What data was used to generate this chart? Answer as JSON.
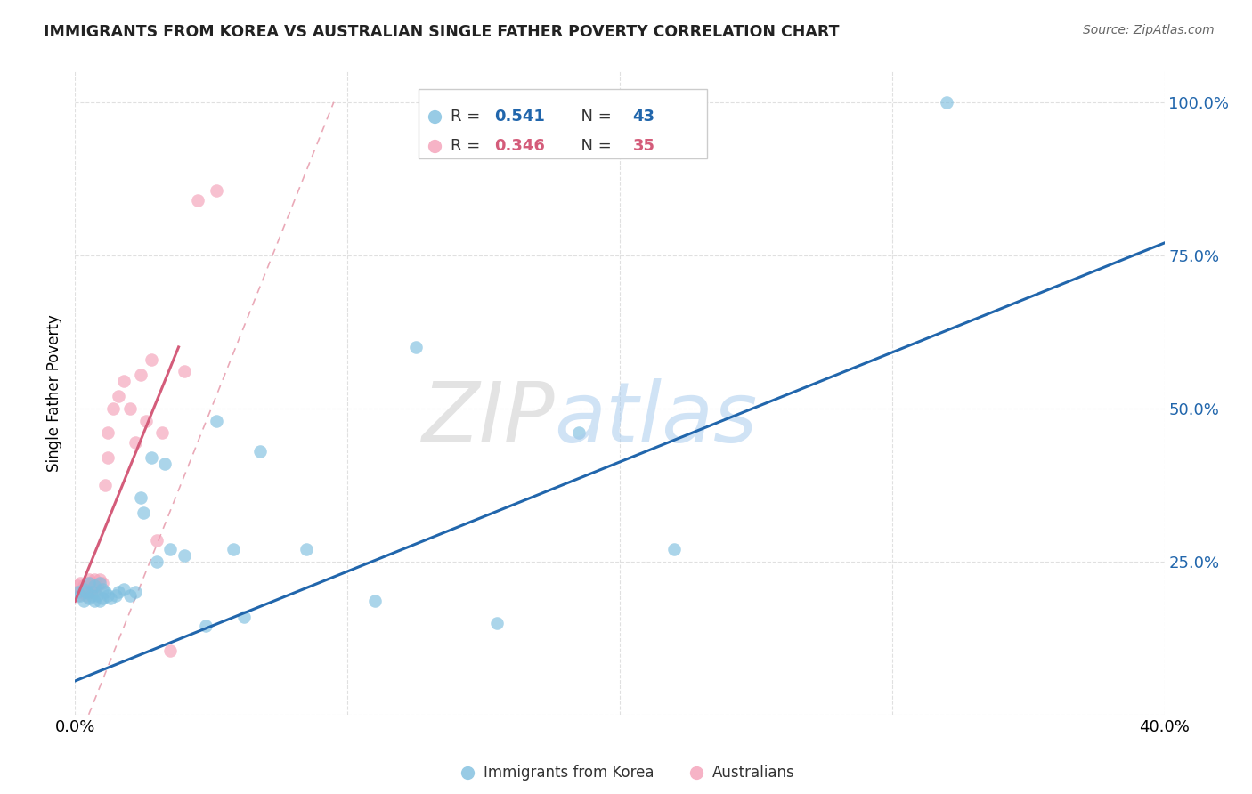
{
  "title": "IMMIGRANTS FROM KOREA VS AUSTRALIAN SINGLE FATHER POVERTY CORRELATION CHART",
  "source": "Source: ZipAtlas.com",
  "ylabel": "Single Father Poverty",
  "xlim": [
    0.0,
    0.4
  ],
  "ylim": [
    0.0,
    1.05
  ],
  "xtick_positions": [
    0.0,
    0.1,
    0.2,
    0.3,
    0.4
  ],
  "xticklabels": [
    "0.0%",
    "",
    "",
    "",
    "40.0%"
  ],
  "ytick_positions": [
    0.0,
    0.25,
    0.5,
    0.75,
    1.0
  ],
  "yticklabels": [
    "",
    "25.0%",
    "50.0%",
    "75.0%",
    "100.0%"
  ],
  "blue_R": 0.541,
  "blue_N": 43,
  "pink_R": 0.346,
  "pink_N": 35,
  "blue_color": "#7fbfdf",
  "pink_color": "#f4a0b8",
  "blue_line_color": "#2166ac",
  "pink_line_color": "#d45c7a",
  "ref_line_color": "#e8a0b0",
  "background_color": "#ffffff",
  "grid_color": "#dddddd",
  "blue_x": [
    0.001,
    0.002,
    0.003,
    0.003,
    0.004,
    0.005,
    0.005,
    0.006,
    0.006,
    0.007,
    0.007,
    0.008,
    0.009,
    0.009,
    0.01,
    0.01,
    0.011,
    0.012,
    0.013,
    0.015,
    0.016,
    0.018,
    0.02,
    0.022,
    0.024,
    0.025,
    0.028,
    0.03,
    0.033,
    0.035,
    0.04,
    0.048,
    0.052,
    0.058,
    0.062,
    0.068,
    0.085,
    0.11,
    0.125,
    0.155,
    0.185,
    0.22,
    0.32
  ],
  "blue_y": [
    0.2,
    0.195,
    0.205,
    0.185,
    0.2,
    0.19,
    0.215,
    0.195,
    0.2,
    0.185,
    0.21,
    0.195,
    0.185,
    0.215,
    0.19,
    0.205,
    0.2,
    0.195,
    0.19,
    0.195,
    0.2,
    0.205,
    0.195,
    0.2,
    0.355,
    0.33,
    0.42,
    0.25,
    0.41,
    0.27,
    0.26,
    0.145,
    0.48,
    0.27,
    0.16,
    0.43,
    0.27,
    0.185,
    0.6,
    0.15,
    0.46,
    0.27,
    1.0
  ],
  "pink_x": [
    0.001,
    0.001,
    0.002,
    0.002,
    0.003,
    0.003,
    0.004,
    0.004,
    0.005,
    0.005,
    0.005,
    0.006,
    0.006,
    0.007,
    0.007,
    0.008,
    0.009,
    0.01,
    0.011,
    0.012,
    0.012,
    0.014,
    0.016,
    0.018,
    0.02,
    0.022,
    0.024,
    0.026,
    0.028,
    0.03,
    0.032,
    0.035,
    0.04,
    0.045,
    0.052
  ],
  "pink_y": [
    0.195,
    0.21,
    0.2,
    0.215,
    0.21,
    0.2,
    0.195,
    0.215,
    0.205,
    0.2,
    0.22,
    0.205,
    0.215,
    0.2,
    0.22,
    0.21,
    0.22,
    0.215,
    0.375,
    0.42,
    0.46,
    0.5,
    0.52,
    0.545,
    0.5,
    0.445,
    0.555,
    0.48,
    0.58,
    0.285,
    0.46,
    0.105,
    0.56,
    0.84,
    0.855
  ],
  "blue_line_x0": 0.0,
  "blue_line_y0": 0.055,
  "blue_line_x1": 0.4,
  "blue_line_y1": 0.77,
  "pink_line_x0": 0.0,
  "pink_line_y0": 0.185,
  "pink_line_x1": 0.038,
  "pink_line_y1": 0.6,
  "ref_line_x0": 0.005,
  "ref_line_y0": 0.0,
  "ref_line_x1": 0.095,
  "ref_line_y1": 1.0
}
